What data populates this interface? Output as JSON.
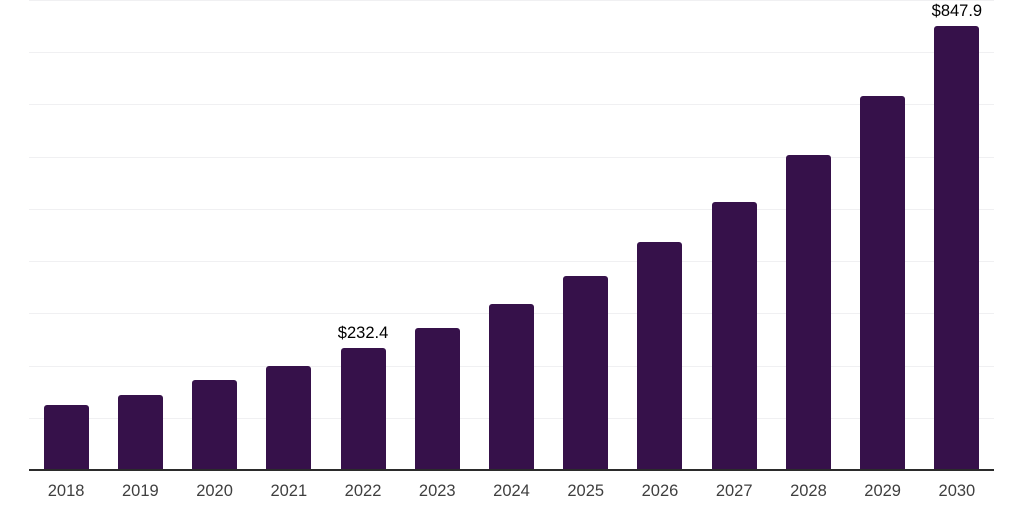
{
  "chart_data": {
    "type": "bar",
    "title": "",
    "xlabel": "",
    "ylabel": "",
    "categories": [
      "2018",
      "2019",
      "2020",
      "2021",
      "2022",
      "2023",
      "2024",
      "2025",
      "2026",
      "2027",
      "2028",
      "2029",
      "2030"
    ],
    "values": [
      122.2,
      142.6,
      170.0,
      196.5,
      232.4,
      270.8,
      316.0,
      370.3,
      434.4,
      512.2,
      601.8,
      713.6,
      847.9
    ],
    "data_labels": {
      "2022": "$232.4",
      "2030": "$847.9"
    },
    "ylim": [
      0,
      900
    ],
    "gridline_interval": 100,
    "y_axis_tick_labels_visible": false,
    "grid": "horizontal",
    "legend": "none",
    "colors": {
      "bar": "#36114A",
      "gridline": "#f0f0f2",
      "axis_line": "#2b2b2b",
      "tick_label": "#3f3f3f",
      "data_label": "#000000",
      "background": "#ffffff"
    }
  }
}
